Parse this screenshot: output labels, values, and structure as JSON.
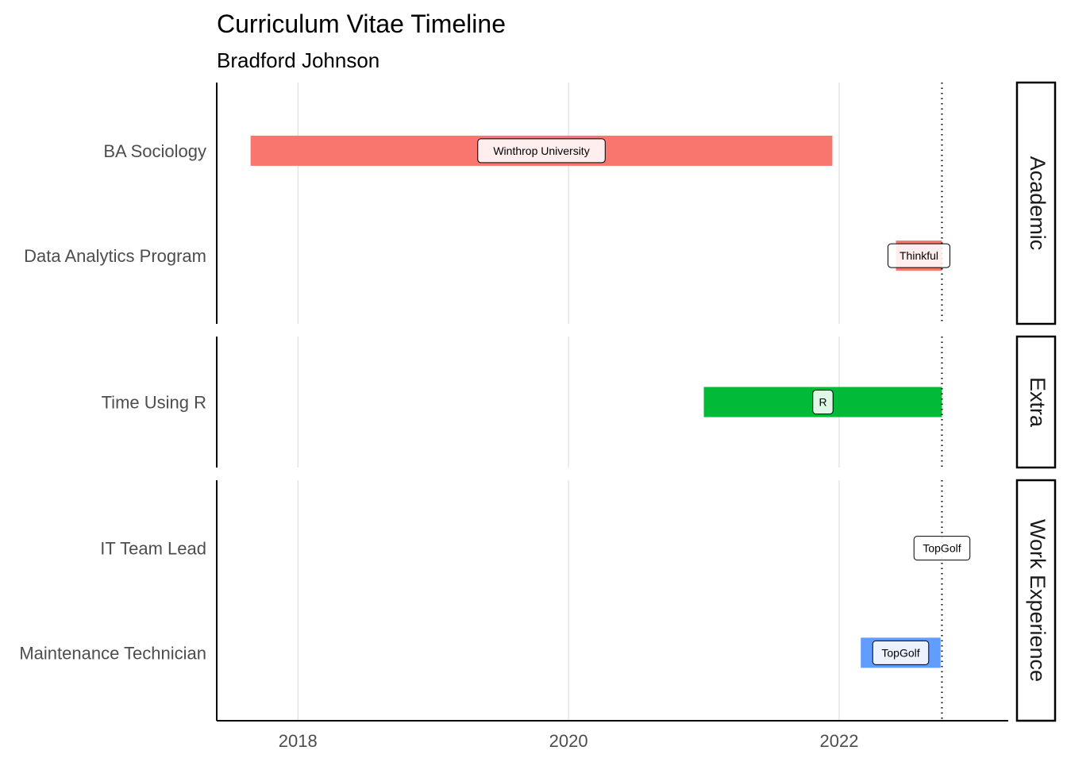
{
  "chart_data": {
    "type": "bar",
    "title": "Curriculum Vitae Timeline",
    "subtitle": "Bradford Johnson",
    "xlabel": "",
    "ylabel": "",
    "xlim": [
      2017.4,
      2023.25
    ],
    "x_ticks": [
      2018,
      2020,
      2022
    ],
    "reference_line": 2022.76,
    "facets": [
      {
        "name": "Academic",
        "rows": [
          {
            "label": "BA Sociology",
            "start": 2017.65,
            "end": 2021.95,
            "color": "#F8766D",
            "annotation": "Winthrop University"
          },
          {
            "label": "Data Analytics Program",
            "start": 2022.42,
            "end": 2022.76,
            "color": "#F8766D",
            "annotation": "Thinkful"
          }
        ]
      },
      {
        "name": "Extra",
        "rows": [
          {
            "label": "Time Using R",
            "start": 2021.0,
            "end": 2022.76,
            "color": "#00BA38",
            "annotation": "R"
          }
        ]
      },
      {
        "name": "Work Experience",
        "rows": [
          {
            "label": "IT Team Lead",
            "start": 2022.76,
            "end": 2022.76,
            "color": "#619CFF",
            "annotation": "TopGolf"
          },
          {
            "label": "Maintenance Technician",
            "start": 2022.16,
            "end": 2022.75,
            "color": "#619CFF",
            "annotation": "TopGolf"
          }
        ]
      }
    ],
    "grid": true,
    "legend": "none"
  }
}
